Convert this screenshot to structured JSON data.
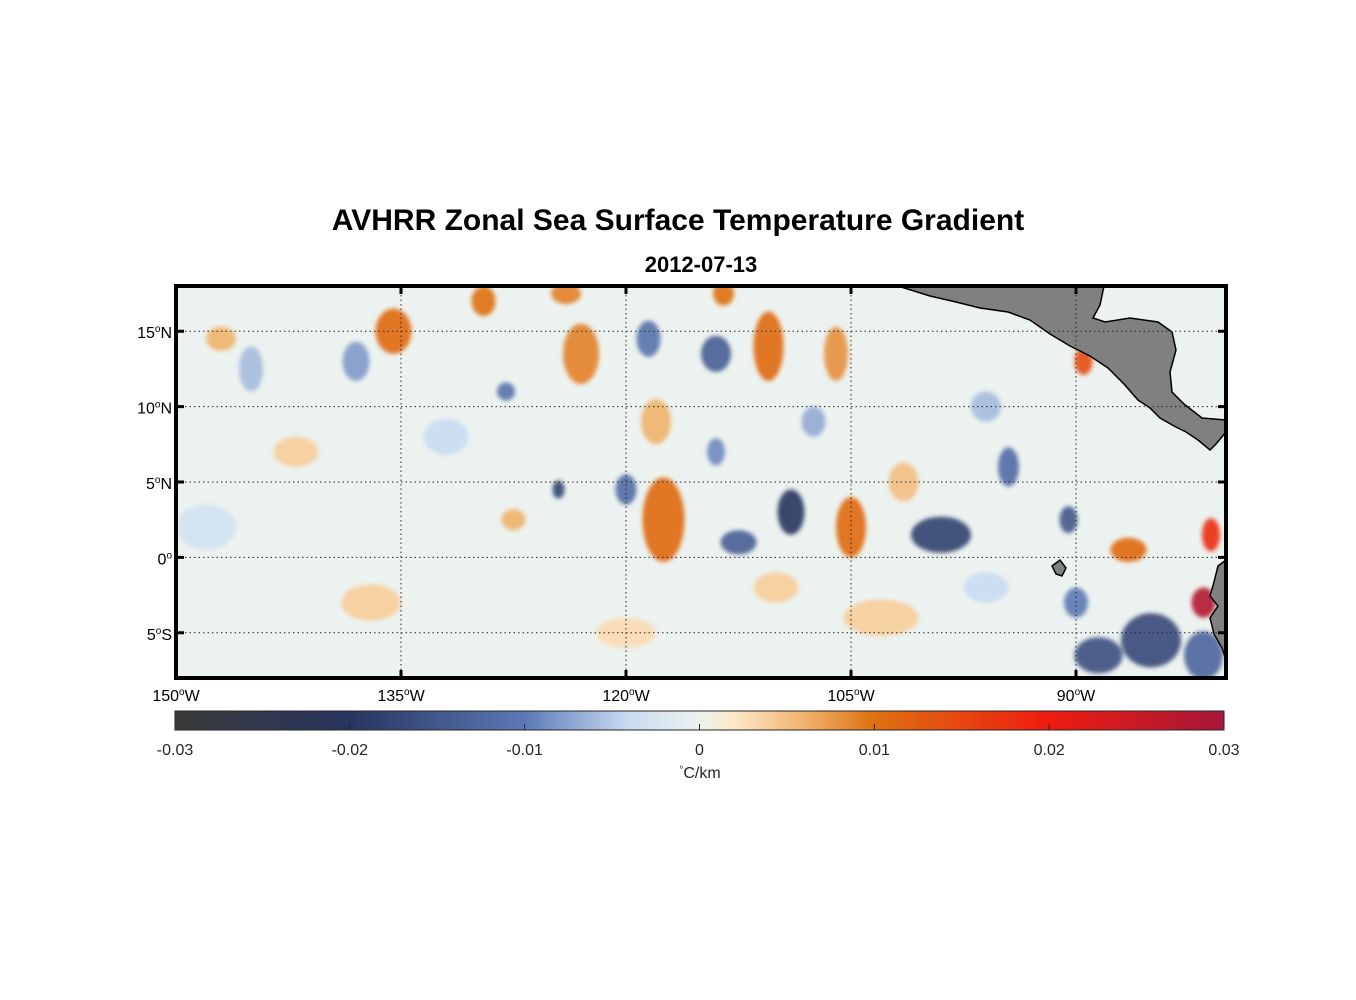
{
  "title": "AVHRR Zonal Sea Surface Temperature Gradient",
  "subtitle": "2012-07-13",
  "map": {
    "lon_range": [
      -150,
      -80
    ],
    "lat_range": [
      -8,
      18
    ],
    "lat_ticks": [
      {
        "value": 15,
        "num": "15",
        "hemi": "N"
      },
      {
        "value": 10,
        "num": "10",
        "hemi": "N"
      },
      {
        "value": 5,
        "num": "5",
        "hemi": "N"
      },
      {
        "value": 0,
        "num": "0",
        "hemi": ""
      },
      {
        "value": -5,
        "num": "5",
        "hemi": "S"
      }
    ],
    "lon_ticks": [
      {
        "value": -150,
        "num": "150",
        "hemi": "W"
      },
      {
        "value": -135,
        "num": "135",
        "hemi": "W"
      },
      {
        "value": -120,
        "num": "120",
        "hemi": "W"
      },
      {
        "value": -105,
        "num": "105",
        "hemi": "W"
      },
      {
        "value": -90,
        "num": "90",
        "hemi": "W"
      }
    ],
    "degree_symbol": "o",
    "land_color": "#808080",
    "features": [
      {
        "lon": -135.5,
        "lat": 15.0,
        "rx": 1.2,
        "ry": 1.5,
        "v": 0.011
      },
      {
        "lon": -138.0,
        "lat": 13.0,
        "rx": 0.9,
        "ry": 1.3,
        "v": -0.008
      },
      {
        "lon": -147.0,
        "lat": 14.5,
        "rx": 1.0,
        "ry": 0.8,
        "v": 0.006
      },
      {
        "lon": -145.0,
        "lat": 12.5,
        "rx": 0.8,
        "ry": 1.5,
        "v": -0.006
      },
      {
        "lon": -129.5,
        "lat": 17.0,
        "rx": 0.8,
        "ry": 1.0,
        "v": 0.01
      },
      {
        "lon": -124.0,
        "lat": 17.5,
        "rx": 1.0,
        "ry": 0.7,
        "v": 0.009
      },
      {
        "lon": -123.0,
        "lat": 13.5,
        "rx": 1.2,
        "ry": 2.0,
        "v": 0.009
      },
      {
        "lon": -118.5,
        "lat": 14.5,
        "rx": 0.8,
        "ry": 1.2,
        "v": -0.011
      },
      {
        "lon": -114.0,
        "lat": 13.5,
        "rx": 1.0,
        "ry": 1.2,
        "v": -0.014
      },
      {
        "lon": -110.5,
        "lat": 14.0,
        "rx": 1.0,
        "ry": 2.3,
        "v": 0.011
      },
      {
        "lon": -113.5,
        "lat": 17.5,
        "rx": 0.7,
        "ry": 0.8,
        "v": 0.01
      },
      {
        "lon": -106.0,
        "lat": 13.5,
        "rx": 0.8,
        "ry": 1.8,
        "v": 0.008
      },
      {
        "lon": -128.0,
        "lat": 11.0,
        "rx": 0.6,
        "ry": 0.6,
        "v": -0.011
      },
      {
        "lon": -89.5,
        "lat": 13.0,
        "rx": 0.6,
        "ry": 0.9,
        "v": 0.014
      },
      {
        "lon": -117.5,
        "lat": 2.5,
        "rx": 1.4,
        "ry": 2.8,
        "v": 0.011
      },
      {
        "lon": -120.0,
        "lat": 4.5,
        "rx": 0.7,
        "ry": 1.0,
        "v": -0.012
      },
      {
        "lon": -124.5,
        "lat": 4.5,
        "rx": 0.4,
        "ry": 0.6,
        "v": -0.018
      },
      {
        "lon": -109.0,
        "lat": 3.0,
        "rx": 0.9,
        "ry": 1.5,
        "v": -0.02
      },
      {
        "lon": -105.0,
        "lat": 2.0,
        "rx": 1.0,
        "ry": 2.0,
        "v": 0.011
      },
      {
        "lon": -112.5,
        "lat": 1.0,
        "rx": 1.2,
        "ry": 0.8,
        "v": -0.014
      },
      {
        "lon": -99.0,
        "lat": 1.5,
        "rx": 2.0,
        "ry": 1.2,
        "v": -0.018
      },
      {
        "lon": -94.5,
        "lat": 6.0,
        "rx": 0.7,
        "ry": 1.3,
        "v": -0.012
      },
      {
        "lon": -90.5,
        "lat": 2.5,
        "rx": 0.6,
        "ry": 0.9,
        "v": -0.015
      },
      {
        "lon": -86.5,
        "lat": 0.5,
        "rx": 1.2,
        "ry": 0.8,
        "v": 0.011
      },
      {
        "lon": -81.0,
        "lat": 1.5,
        "rx": 0.6,
        "ry": 1.1,
        "v": 0.018
      },
      {
        "lon": -81.5,
        "lat": -3.0,
        "rx": 0.8,
        "ry": 1.0,
        "v": 0.028
      },
      {
        "lon": -85.0,
        "lat": -5.5,
        "rx": 2.0,
        "ry": 1.8,
        "v": -0.017
      },
      {
        "lon": -88.5,
        "lat": -6.5,
        "rx": 1.6,
        "ry": 1.2,
        "v": -0.016
      },
      {
        "lon": -81.5,
        "lat": -6.5,
        "rx": 1.3,
        "ry": 1.6,
        "v": -0.013
      },
      {
        "lon": -90.0,
        "lat": -3.0,
        "rx": 0.8,
        "ry": 1.0,
        "v": -0.01
      },
      {
        "lon": -96.0,
        "lat": 10.0,
        "rx": 1.0,
        "ry": 1.0,
        "v": -0.006
      },
      {
        "lon": -107.5,
        "lat": 9.0,
        "rx": 0.8,
        "ry": 1.0,
        "v": -0.007
      },
      {
        "lon": -142.0,
        "lat": 7.0,
        "rx": 1.5,
        "ry": 1.0,
        "v": 0.004
      },
      {
        "lon": -132.0,
        "lat": 8.0,
        "rx": 1.5,
        "ry": 1.2,
        "v": -0.004
      },
      {
        "lon": -118.0,
        "lat": 9.0,
        "rx": 1.0,
        "ry": 1.5,
        "v": 0.006
      },
      {
        "lon": -114.0,
        "lat": 7.0,
        "rx": 0.6,
        "ry": 0.9,
        "v": -0.009
      },
      {
        "lon": -127.5,
        "lat": 2.5,
        "rx": 0.8,
        "ry": 0.7,
        "v": 0.006
      },
      {
        "lon": -101.5,
        "lat": 5.0,
        "rx": 1.0,
        "ry": 1.3,
        "v": 0.005
      },
      {
        "lon": -137.0,
        "lat": -3.0,
        "rx": 2.0,
        "ry": 1.2,
        "v": 0.004
      },
      {
        "lon": -120.0,
        "lat": -5.0,
        "rx": 2.0,
        "ry": 1.0,
        "v": 0.003
      },
      {
        "lon": -103.0,
        "lat": -4.0,
        "rx": 2.5,
        "ry": 1.2,
        "v": 0.004
      },
      {
        "lon": -96.0,
        "lat": -2.0,
        "rx": 1.5,
        "ry": 1.0,
        "v": -0.004
      },
      {
        "lon": -148.0,
        "lat": 2.0,
        "rx": 2.0,
        "ry": 1.5,
        "v": -0.003
      },
      {
        "lon": -110.0,
        "lat": -2.0,
        "rx": 1.5,
        "ry": 1.0,
        "v": 0.004
      }
    ]
  },
  "colorbar": {
    "range": [
      -0.03,
      0.03
    ],
    "ticks": [
      {
        "value": -0.03,
        "label": "-0.03"
      },
      {
        "value": -0.02,
        "label": "-0.02"
      },
      {
        "value": -0.01,
        "label": "-0.01"
      },
      {
        "value": 0,
        "label": "0"
      },
      {
        "value": 0.01,
        "label": "0.01"
      },
      {
        "value": 0.02,
        "label": "0.02"
      },
      {
        "value": 0.03,
        "label": "0.03"
      }
    ],
    "label_deg": "°",
    "label_unit": "C/km",
    "stops": [
      {
        "v": -0.03,
        "c": "#3a3a3a"
      },
      {
        "v": -0.02,
        "c": "#28355f"
      },
      {
        "v": -0.01,
        "c": "#5c79b6"
      },
      {
        "v": -0.004,
        "c": "#c9dcf2"
      },
      {
        "v": 0.0,
        "c": "#ecf2ef"
      },
      {
        "v": 0.002,
        "c": "#fde7c8"
      },
      {
        "v": 0.006,
        "c": "#f0b26c"
      },
      {
        "v": 0.01,
        "c": "#de7010"
      },
      {
        "v": 0.02,
        "c": "#ee1c10"
      },
      {
        "v": 0.03,
        "c": "#a5173a"
      }
    ]
  }
}
